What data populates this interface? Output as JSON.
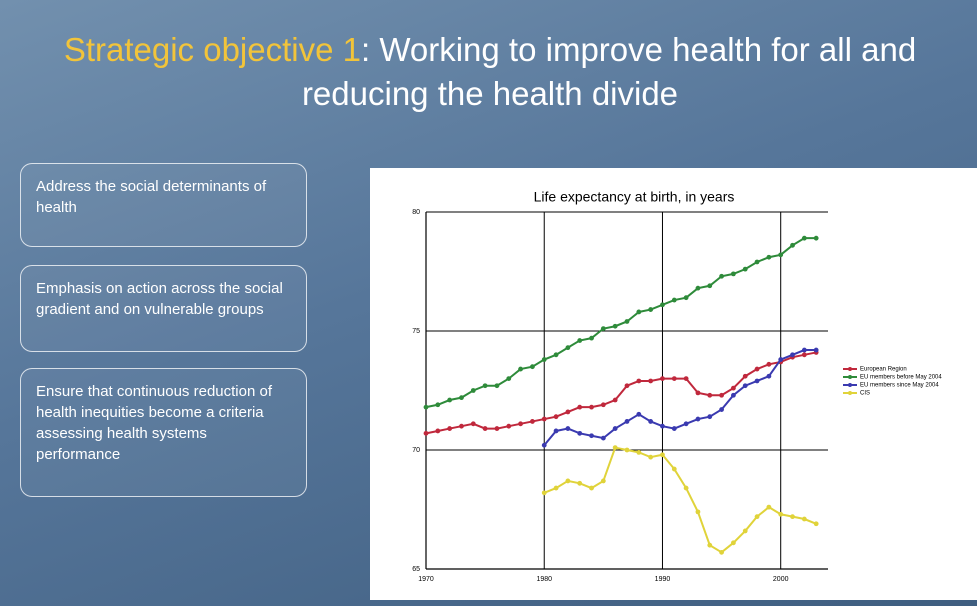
{
  "title_highlight": "Strategic objective 1",
  "title_rest": ": Working to improve health for all and reducing the health divide",
  "boxes": [
    "Address the social determinants of health",
    "Emphasis on action across the social gradient and on vulnerable groups",
    "Ensure that continuous reduction of health inequities become a criteria assessing health systems performance"
  ],
  "chart_data": {
    "type": "line",
    "title": "Life expectancy at birth, in years",
    "x": [
      1970,
      1971,
      1972,
      1973,
      1974,
      1975,
      1976,
      1977,
      1978,
      1979,
      1980,
      1981,
      1982,
      1983,
      1984,
      1985,
      1986,
      1987,
      1988,
      1989,
      1990,
      1991,
      1992,
      1993,
      1994,
      1995,
      1996,
      1997,
      1998,
      1999,
      2000,
      2001,
      2002,
      2003
    ],
    "xlim": [
      1970,
      2004
    ],
    "xticks": [
      1970,
      1980,
      1990,
      2000
    ],
    "ylim": [
      65,
      80
    ],
    "yticks": [
      65,
      70,
      75,
      80
    ],
    "grid": true,
    "legend": "right",
    "series": [
      {
        "name": "European Region",
        "color": "#c0283c",
        "values": [
          70.7,
          70.8,
          70.9,
          71.0,
          71.1,
          70.9,
          70.9,
          71.0,
          71.1,
          71.2,
          71.3,
          71.4,
          71.6,
          71.8,
          71.8,
          71.9,
          72.1,
          72.7,
          72.9,
          72.9,
          73.0,
          73.0,
          73.0,
          72.4,
          72.3,
          72.3,
          72.6,
          73.1,
          73.4,
          73.6,
          73.7,
          73.9,
          74.0,
          74.1
        ]
      },
      {
        "name": "EU members before May 2004",
        "color": "#2e8b3a",
        "values": [
          71.8,
          71.9,
          72.1,
          72.2,
          72.5,
          72.7,
          72.7,
          73.0,
          73.4,
          73.5,
          73.8,
          74.0,
          74.3,
          74.6,
          74.7,
          75.1,
          75.2,
          75.4,
          75.8,
          75.9,
          76.1,
          76.3,
          76.4,
          76.8,
          76.9,
          77.3,
          77.4,
          77.6,
          77.9,
          78.1,
          78.2,
          78.6,
          78.9,
          78.9
        ]
      },
      {
        "name": "EU members since May 2004",
        "color": "#3a3ab0",
        "values": [
          null,
          null,
          null,
          null,
          null,
          null,
          null,
          null,
          null,
          null,
          70.2,
          70.8,
          70.9,
          70.7,
          70.6,
          70.5,
          70.9,
          71.2,
          71.5,
          71.2,
          71.0,
          70.9,
          71.1,
          71.3,
          71.4,
          71.7,
          72.3,
          72.7,
          72.9,
          73.1,
          73.8,
          74.0,
          74.2,
          74.2
        ]
      },
      {
        "name": "CIS",
        "color": "#e0d33a",
        "values": [
          null,
          null,
          null,
          null,
          null,
          null,
          null,
          null,
          null,
          null,
          68.2,
          68.4,
          68.7,
          68.6,
          68.4,
          68.7,
          70.1,
          70.0,
          69.9,
          69.7,
          69.8,
          69.2,
          68.4,
          67.4,
          66.0,
          65.7,
          66.1,
          66.6,
          67.2,
          67.6,
          67.3,
          67.2,
          67.1,
          66.9
        ]
      }
    ]
  }
}
